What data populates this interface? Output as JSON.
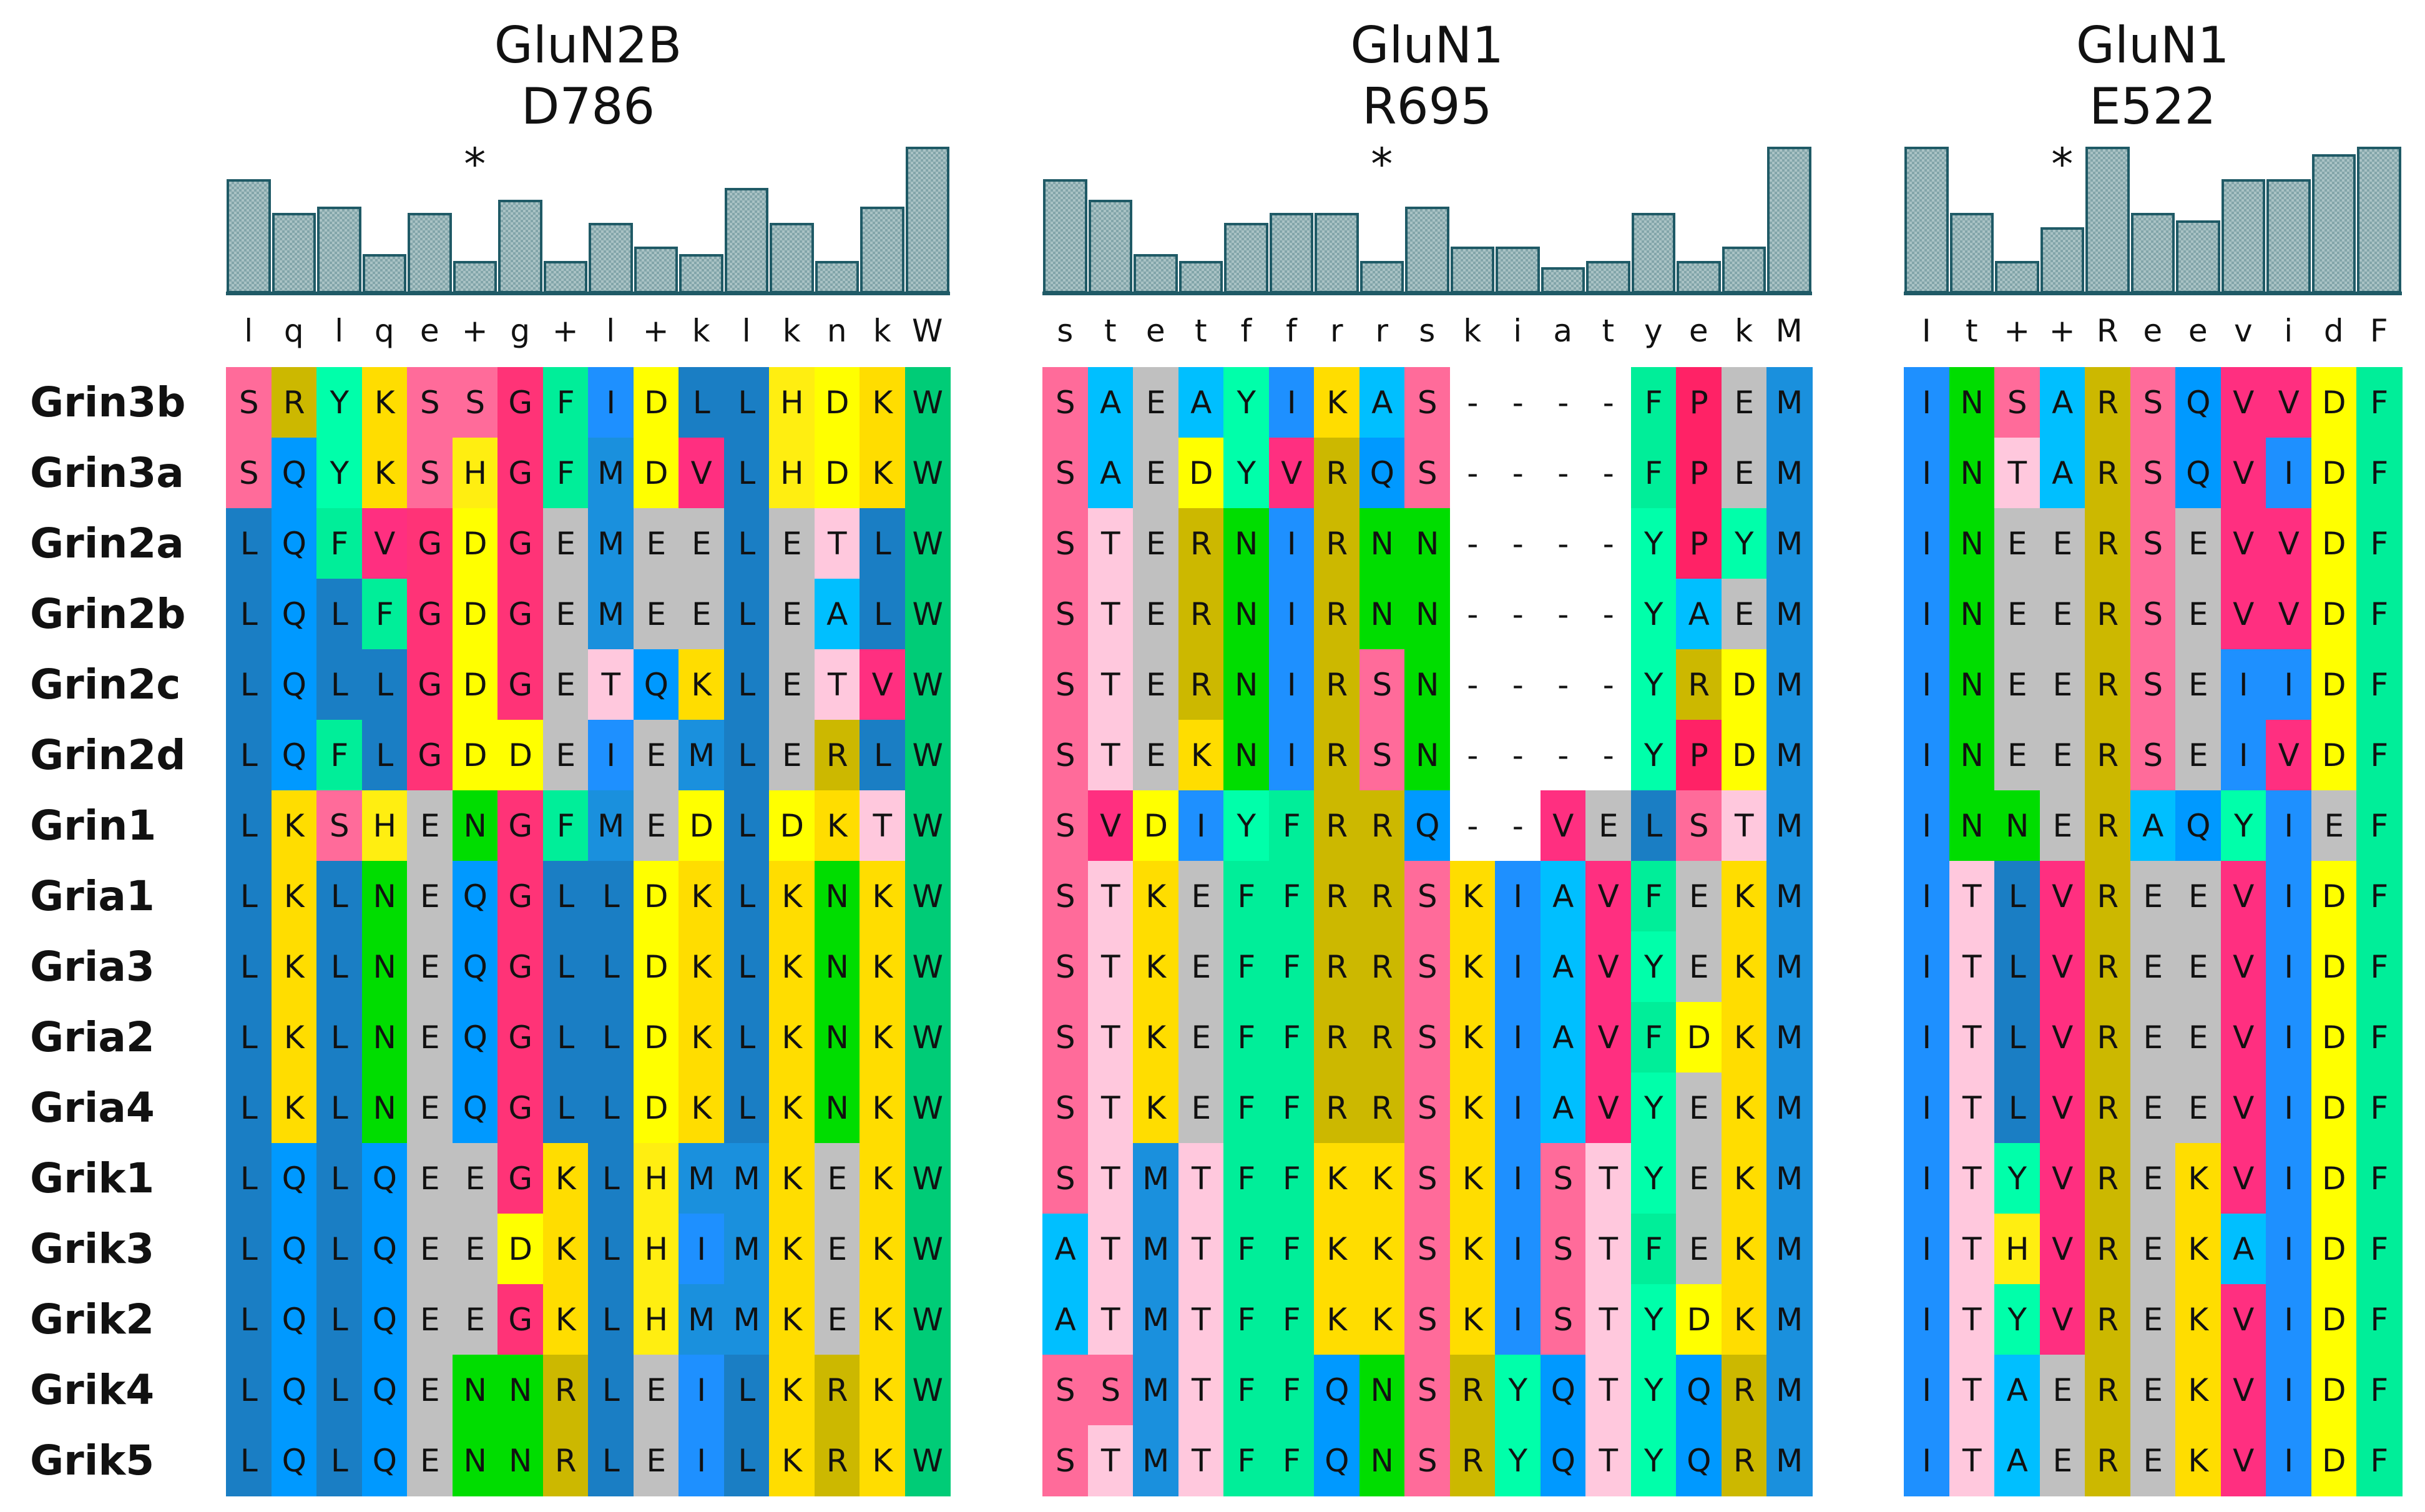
{
  "colors": {
    "A": "#00bfff",
    "C": "#3cb371",
    "D": "#ffff00",
    "E": "#c0c0c0",
    "F": "#00ee99",
    "G": "#ff3377",
    "H": "#ffee11",
    "I": "#1e90ff",
    "K": "#ffdd00",
    "L": "#1a7ec4",
    "M": "#1a90dd",
    "N": "#00dd00",
    "P": "#ff2266",
    "Q": "#0099ff",
    "R": "#ccb800",
    "S": "#ff6b9a",
    "T": "#ffc8dd",
    "V": "#ff2f80",
    "W": "#00cc77",
    "Y": "#00ffaa",
    "gap": "#ffffff"
  },
  "sequence_names": [
    "Grin3b",
    "Grin3a",
    "Grin2a",
    "Grin2b",
    "Grin2c",
    "Grin2d",
    "Grin1",
    "Gria1",
    "Gria3",
    "Gria2",
    "Gria4",
    "Grik1",
    "Grik3",
    "Grik2",
    "Grik4",
    "Grik5"
  ],
  "panels": [
    {
      "title_line1": "GluN2B",
      "title_line2": "D786",
      "star": "*",
      "star_index": 5,
      "consensus": [
        "l",
        "q",
        "l",
        "q",
        "e",
        "+",
        "g",
        "+",
        "l",
        "+",
        "k",
        "l",
        "k",
        "n",
        "k",
        "W"
      ],
      "conservation": [
        0.78,
        0.55,
        0.59,
        0.27,
        0.55,
        0.22,
        0.64,
        0.22,
        0.48,
        0.32,
        0.27,
        0.72,
        0.48,
        0.22,
        0.59,
        1.0
      ],
      "rows": [
        "SRYKSSGFIDLLHDKW",
        "SQYKSHGFMDVLHDKW",
        "LQFVGDGEMEELETLW",
        "LQLFGDGEMEELEALW",
        "LQLLGDGETQKLETVW",
        "LQFLGDDEIEMLERLW",
        "LKSHENGFMEDLDKTW",
        "LKLNEQGLLDKLKNKW",
        "LKLNEQGLLDKLKNKW",
        "LKLNEQGLLDKLKNKW",
        "LKLNEQGLLDKLKNKW",
        "LQLQEEGKLHMMKEKW",
        "LQLQEEDKLHIMKEKW",
        "LQLQEEGKLHMMKEKW",
        "LQLQENNRLEILKRKW",
        "LQLQENNRLEILKRKW"
      ]
    },
    {
      "title_line1": "GluN1",
      "title_line2": "R695",
      "star": "*",
      "star_index": 7,
      "consensus": [
        "s",
        "t",
        "e",
        "t",
        "f",
        "f",
        "r",
        "r",
        "s",
        "k",
        "i",
        "a",
        "t",
        "y",
        "e",
        "k",
        "M"
      ],
      "conservation": [
        0.78,
        0.64,
        0.27,
        0.22,
        0.48,
        0.55,
        0.55,
        0.22,
        0.59,
        0.32,
        0.32,
        0.18,
        0.22,
        0.55,
        0.22,
        0.32,
        1.0
      ],
      "rows": [
        "SAEAYIKAS----FPEM",
        "SAEDYVRQS----FPEM",
        "STERNIRNN----YPYM",
        "STERNIRNN----YAEM",
        "STERNIRSN----YRDM",
        "STEKNIRSN----YPDM",
        "SVDIYFRRQ--VELSTM",
        "STKEFFRRSKIAVFEKM",
        "STKEFFRRSKIAVYEKM",
        "STKEFFRRSKIAVFDKM",
        "STKEFFRRSKIAVYEKM",
        "STMTFFKKSKISTYEKM",
        "ATMTFFKKSKISTFEKM",
        "ATMTFFKKSKISTYDKM",
        "SSMTFFQNSRYQTYQRM",
        "STMTFFQNSRYQTYQRM"
      ]
    },
    {
      "title_line1": "GluN1",
      "title_line2": "E522",
      "star": "*",
      "star_index": 3,
      "consensus": [
        "I",
        "t",
        "+",
        "+",
        "R",
        "e",
        "e",
        "v",
        "i",
        "d",
        "F"
      ],
      "conservation": [
        1.0,
        0.55,
        0.22,
        0.45,
        1.0,
        0.55,
        0.5,
        0.78,
        0.78,
        0.95,
        1.0
      ],
      "rows": [
        "INSARSQVVDF",
        "INTARSQVIDF",
        "INEERSEVVDF",
        "INEERSEVVDF",
        "INEERSEIIDF",
        "INEERSEIVDF",
        "INNERAQYIEF",
        "ITLVREEVIDF",
        "ITLVREEVIDF",
        "ITLVREEVIDF",
        "ITLVREEVIDF",
        "ITYVREKVIDF",
        "ITHVREKAIDF",
        "ITYVREKVIDF",
        "ITAEREKVIDF",
        "ITAEREKVIDF"
      ]
    }
  ]
}
